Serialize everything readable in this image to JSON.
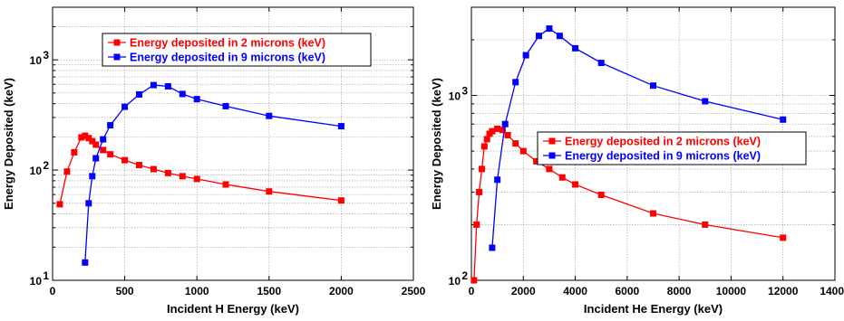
{
  "chart_data": [
    {
      "type": "line",
      "xlabel": "Incident H Energy (keV)",
      "ylabel": "Energy Deposited (keV)",
      "xlim": [
        0,
        2500
      ],
      "ylim": [
        10,
        3000
      ],
      "yscale": "log",
      "grid": true,
      "legend_position": "top-center",
      "x_ticks": [
        0,
        500,
        1000,
        1500,
        2000,
        2500
      ],
      "x_tick_labels": [
        "0",
        "500",
        "1000",
        "1500",
        "2000",
        "2500"
      ],
      "y_ticks": [
        10,
        100,
        1000
      ],
      "y_tick_labels": [
        {
          "base": "10",
          "exp": "1"
        },
        {
          "base": "10",
          "exp": "2"
        },
        {
          "base": "10",
          "exp": "3"
        }
      ],
      "series": [
        {
          "name": "Energy deposited in 2 microns (keV)",
          "color": "#ff0000",
          "x": [
            50,
            100,
            150,
            200,
            225,
            250,
            275,
            300,
            350,
            400,
            500,
            600,
            700,
            800,
            900,
            1000,
            1200,
            1500,
            2000
          ],
          "y": [
            49,
            97,
            145,
            198,
            205,
            195,
            183,
            170,
            152,
            139,
            123,
            111,
            102,
            94,
            88,
            83,
            74,
            64,
            53
          ]
        },
        {
          "name": "Energy deposited in 9 microns (keV)",
          "color": "#0000ff",
          "x": [
            225,
            250,
            275,
            300,
            350,
            400,
            500,
            600,
            700,
            800,
            900,
            1000,
            1200,
            1500,
            2000
          ],
          "y": [
            14.5,
            50,
            88,
            128,
            190,
            255,
            375,
            485,
            590,
            575,
            490,
            440,
            380,
            310,
            250
          ]
        }
      ]
    },
    {
      "type": "line",
      "xlabel": "Incident He Energy (keV)",
      "ylabel": "Energy Deposited (keV)",
      "xlim": [
        0,
        14000
      ],
      "ylim": [
        100,
        3000
      ],
      "yscale": "log",
      "grid": true,
      "legend_position": "center-right",
      "x_ticks": [
        0,
        2000,
        4000,
        6000,
        8000,
        10000,
        12000,
        14000
      ],
      "x_tick_labels": [
        "0",
        "2000",
        "4000",
        "6000",
        "8000",
        "10000",
        "12000",
        "14000"
      ],
      "y_ticks": [
        100,
        1000
      ],
      "y_tick_labels": [
        {
          "base": "10",
          "exp": "2"
        },
        {
          "base": "10",
          "exp": "3"
        }
      ],
      "series": [
        {
          "name": "Energy deposited in 2 microns (keV)",
          "color": "#ff0000",
          "x": [
            100,
            200,
            300,
            400,
            500,
            600,
            700,
            800,
            1000,
            1200,
            1400,
            1700,
            2000,
            2500,
            3000,
            3500,
            4000,
            5000,
            7000,
            9000,
            12000
          ],
          "y": [
            100,
            200,
            300,
            400,
            530,
            580,
            620,
            640,
            660,
            650,
            610,
            550,
            500,
            440,
            400,
            360,
            330,
            290,
            230,
            200,
            170
          ]
        },
        {
          "name": "Energy deposited in 9 microns (keV)",
          "color": "#0000ff",
          "x": [
            800,
            1000,
            1300,
            1700,
            2100,
            2600,
            3000,
            3400,
            4000,
            5000,
            7000,
            9000,
            12000
          ],
          "y": [
            150,
            350,
            700,
            1180,
            1650,
            2100,
            2300,
            2100,
            1800,
            1500,
            1130,
            930,
            740
          ]
        }
      ]
    }
  ]
}
